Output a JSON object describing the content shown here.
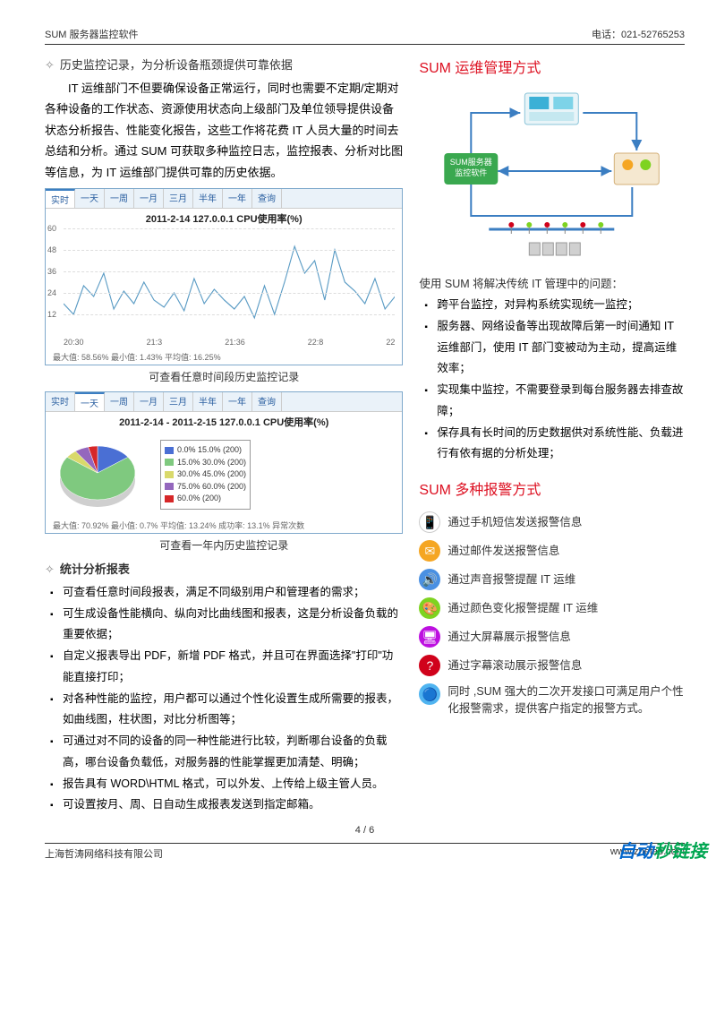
{
  "header": {
    "left": "SUM 服务器监控软件",
    "right": "电话：021-52765253"
  },
  "left_col": {
    "h1": "历史监控记录，为分析设备瓶颈提供可靠依据",
    "p1": "IT 运维部门不但要确保设备正常运行，同时也需要不定期/定期对各种设备的工作状态、资源使用状态向上级部门及单位领导提供设备状态分析报告、性能变化报告，这些工作将花费 IT 人员大量的时间去总结和分析。通过 SUM 可获取多种监控日志，监控报表、分析对比图等信息，为 IT 运维部门提供可靠的历史依据。",
    "line_chart": {
      "type": "line",
      "tabs": [
        "实时",
        "一天",
        "一周",
        "一月",
        "三月",
        "半年",
        "一年",
        "查询"
      ],
      "active_tab": 0,
      "title": "2011-2-14 127.0.0.1 CPU使用率(%)",
      "ylim": [
        0,
        60
      ],
      "ytick_step": 12,
      "ylabels": [
        "60",
        "48",
        "36",
        "24",
        "12"
      ],
      "xlabels": [
        "20:30",
        "21:3",
        "21:36",
        "22:8",
        "22"
      ],
      "line_color": "#5a9bc4",
      "grid_color": "#dddddd",
      "background_color": "#ffffff",
      "values": [
        18,
        12,
        28,
        22,
        35,
        15,
        25,
        18,
        30,
        20,
        16,
        24,
        14,
        32,
        18,
        26,
        20,
        15,
        22,
        10,
        28,
        12,
        30,
        50,
        35,
        42,
        20,
        48,
        30,
        25,
        18,
        32,
        15,
        22
      ],
      "stats": "最大值: 58.56%  最小值: 1.43%  平均值: 16.25%"
    },
    "cap1": "可查看任意时间段历史监控记录",
    "pie_chart": {
      "type": "pie",
      "tabs": [
        "实时",
        "一天",
        "一周",
        "一月",
        "三月",
        "半年",
        "一年",
        "查询"
      ],
      "active_tab": 1,
      "title": "2011-2-14 - 2011-2-15 127.0.0.1 CPU使用率(%)",
      "slices": [
        {
          "label": "0.0%  15.0% (200)",
          "value": 15,
          "color": "#4a6fd4"
        },
        {
          "label": "15.0%  30.0% (200)",
          "value": 70,
          "color": "#7fc97f"
        },
        {
          "label": "30.0%  45.0% (200)",
          "value": 5,
          "color": "#d9d96b"
        },
        {
          "label": "75.0%  60.0% (200)",
          "value": 6,
          "color": "#9467bd"
        },
        {
          "label": "60.0% (200)",
          "value": 4,
          "color": "#d62728"
        }
      ],
      "stats": "最大值: 70.92%  最小值: 0.7%  平均值: 13.24%  成功率: 13.1%  异常次数"
    },
    "cap2": "可查看一年内历史监控记录",
    "h2": "统计分析报表",
    "bullets2": [
      "可查看任意时间段报表，满足不同级别用户和管理者的需求；",
      "可生成设备性能横向、纵向对比曲线图和报表，这是分析设备负载的重要依据；",
      "自定义报表导出 PDF，新增 PDF 格式，并且可在界面选择\"打印\"功能直接打印；",
      "对各种性能的监控，用户都可以通过个性化设置生成所需要的报表，如曲线图，柱状图，对比分析图等；",
      "可通过对不同的设备的同一种性能进行比较，判断哪台设备的负载高，哪台设备负载低，对服务器的性能掌握更加清楚、明确；",
      "报告具有 WORD\\HTML 格式，可以外发、上传给上级主管人员。",
      "可设置按月、周、日自动生成报表发送到指定邮箱。"
    ]
  },
  "right_col": {
    "title1": "SUM 运维管理方式",
    "diagram": {
      "center_box": {
        "text1": "SUM服务器",
        "text2": "监控软件",
        "bg": "#3aa84f"
      },
      "arrow_color": "#3b7ec2"
    },
    "intro": "使用 SUM 将解决传统 IT 管理中的问题：",
    "bullets": [
      "跨平台监控，对异构系统实现统一监控；",
      "服务器、网络设备等出现故障后第一时间通知 IT 运维部门，使用 IT 部门变被动为主动，提高运维效率；",
      "实现集中监控，不需要登录到每台服务器去排查故障；",
      "保存具有长时间的历史数据供对系统性能、负载进行有依有据的分析处理；"
    ],
    "title2": "SUM 多种报警方式",
    "alerts": [
      {
        "icon_bg": "#ffffff",
        "icon_border": "#ccc",
        "glyph": "📱",
        "text": "通过手机短信发送报警信息"
      },
      {
        "icon_bg": "#f5a623",
        "glyph": "✉",
        "text": "通过邮件发送报警信息"
      },
      {
        "icon_bg": "#4a90e2",
        "glyph": "🔊",
        "text": "通过声音报警提醒 IT 运维"
      },
      {
        "icon_bg": "#7ed321",
        "glyph": "🎨",
        "text": "通过颜色变化报警提醒 IT 运维"
      },
      {
        "icon_bg": "#bd10e0",
        "glyph": "🖥",
        "text": "通过大屏幕展示报警信息"
      },
      {
        "icon_bg": "#d0021b",
        "glyph": "?",
        "text": "通过字幕滚动展示报警信息"
      },
      {
        "icon_bg": "#50b4f0",
        "glyph": "🔵",
        "text": "同时 ,SUM 强大的二次开发接口可满足用户个性化报警需求，提供客户指定的报警方式。",
        "multiline": true
      }
    ]
  },
  "page_num": "4 / 6",
  "footer": {
    "left": "上海哲涛网络科技有限公司",
    "right": "www.zhetao.com"
  },
  "watermark": {
    "part1": "自动",
    "part2": "秒链接"
  }
}
